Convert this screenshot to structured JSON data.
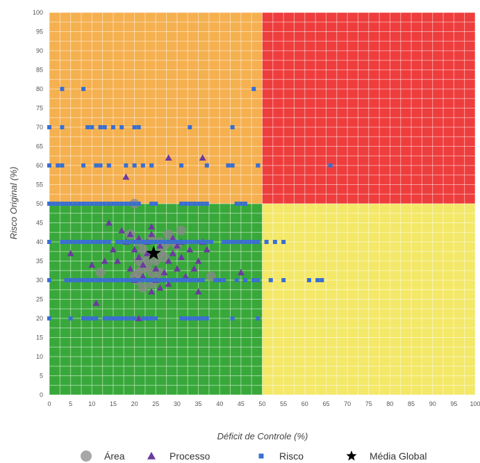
{
  "chart_data": {
    "type": "scatter",
    "title": "",
    "xlabel": "Déficit de Controle (%)",
    "ylabel": "Risco Original (%)",
    "xlim": [
      0,
      100
    ],
    "ylim": [
      0,
      100
    ],
    "x_ticks": [
      "0",
      "5",
      "10",
      "15",
      "20",
      "25",
      "30",
      "35",
      "40",
      "45",
      "50",
      "55",
      "60",
      "65",
      "70",
      "75",
      "80",
      "85",
      "90",
      "95",
      "100"
    ],
    "y_ticks": [
      "0",
      "5",
      "10",
      "15",
      "20",
      "25",
      "30",
      "35",
      "40",
      "45",
      "50",
      "55",
      "60",
      "65",
      "70",
      "75",
      "80",
      "85",
      "90",
      "95",
      "100"
    ],
    "grid": true,
    "legend_position": "bottom",
    "quadrants": [
      {
        "x": [
          0,
          50
        ],
        "y": [
          50,
          100
        ],
        "color": "#f5b04f"
      },
      {
        "x": [
          50,
          100
        ],
        "y": [
          50,
          100
        ],
        "color": "#ee3d3d"
      },
      {
        "x": [
          0,
          50
        ],
        "y": [
          0,
          50
        ],
        "color": "#38a83a"
      },
      {
        "x": [
          50,
          100
        ],
        "y": [
          0,
          50
        ],
        "color": "#f3e868"
      }
    ],
    "series": [
      {
        "name": "Área",
        "marker": "circle",
        "color": "#8a8a8a",
        "points": [
          [
            20,
            50
          ],
          [
            21,
            40
          ],
          [
            22,
            38
          ],
          [
            23,
            36
          ],
          [
            21,
            35
          ],
          [
            22,
            33
          ],
          [
            24,
            32
          ],
          [
            20,
            31
          ],
          [
            21,
            30
          ],
          [
            25,
            30
          ],
          [
            23,
            34
          ],
          [
            26,
            37
          ],
          [
            27,
            39
          ],
          [
            28,
            42
          ],
          [
            29,
            40
          ],
          [
            31,
            43
          ],
          [
            24,
            41
          ],
          [
            19,
            42
          ],
          [
            27,
            36
          ],
          [
            26,
            32
          ],
          [
            24,
            29
          ],
          [
            22,
            28
          ],
          [
            21,
            32
          ],
          [
            25,
            35
          ],
          [
            12,
            32
          ],
          [
            38,
            31
          ],
          [
            30,
            39
          ],
          [
            26,
            40
          ]
        ]
      },
      {
        "name": "Processo",
        "marker": "triangle",
        "color": "#6b3aa0",
        "points": [
          [
            28,
            62
          ],
          [
            36,
            62
          ],
          [
            18,
            57
          ],
          [
            5,
            37
          ],
          [
            10,
            34
          ],
          [
            14,
            45
          ],
          [
            15,
            38
          ],
          [
            16,
            35
          ],
          [
            17,
            43
          ],
          [
            18,
            40
          ],
          [
            19,
            42
          ],
          [
            19,
            33
          ],
          [
            20,
            38
          ],
          [
            20,
            30
          ],
          [
            21,
            41
          ],
          [
            21,
            36
          ],
          [
            22,
            34
          ],
          [
            22,
            31
          ],
          [
            23,
            37
          ],
          [
            23,
            40
          ],
          [
            24,
            44
          ],
          [
            24,
            42
          ],
          [
            24,
            27
          ],
          [
            25,
            30
          ],
          [
            25,
            33
          ],
          [
            26,
            28
          ],
          [
            26,
            39
          ],
          [
            27,
            32
          ],
          [
            28,
            35
          ],
          [
            28,
            29
          ],
          [
            29,
            41
          ],
          [
            29,
            37
          ],
          [
            30,
            33
          ],
          [
            30,
            39
          ],
          [
            31,
            40
          ],
          [
            31,
            36
          ],
          [
            32,
            31
          ],
          [
            33,
            38
          ],
          [
            34,
            33
          ],
          [
            35,
            35
          ],
          [
            35,
            27
          ],
          [
            36,
            40
          ],
          [
            37,
            38
          ],
          [
            45,
            32
          ],
          [
            11,
            24
          ],
          [
            21,
            20
          ],
          [
            13,
            35
          ]
        ]
      },
      {
        "name": "Risco",
        "marker": "square",
        "color": "#3a6fd0",
        "points": [
          [
            3,
            80
          ],
          [
            8,
            80
          ],
          [
            48,
            80
          ],
          [
            0,
            70
          ],
          [
            3,
            70
          ],
          [
            9,
            70
          ],
          [
            10,
            70
          ],
          [
            12,
            70
          ],
          [
            13,
            70
          ],
          [
            15,
            70
          ],
          [
            17,
            70
          ],
          [
            20,
            70
          ],
          [
            21,
            70
          ],
          [
            33,
            70
          ],
          [
            43,
            70
          ],
          [
            0,
            60
          ],
          [
            2,
            60
          ],
          [
            3,
            60
          ],
          [
            8,
            60
          ],
          [
            11,
            60
          ],
          [
            12,
            60
          ],
          [
            14,
            60
          ],
          [
            18,
            60
          ],
          [
            20,
            60
          ],
          [
            22,
            60
          ],
          [
            24,
            60
          ],
          [
            31,
            60
          ],
          [
            37,
            60
          ],
          [
            42,
            60
          ],
          [
            43,
            60
          ],
          [
            49,
            60
          ],
          [
            66,
            60
          ],
          [
            0,
            50
          ],
          [
            1,
            50
          ],
          [
            2,
            50
          ],
          [
            3,
            50
          ],
          [
            4,
            50
          ],
          [
            5,
            50
          ],
          [
            6,
            50
          ],
          [
            7,
            50
          ],
          [
            8,
            50
          ],
          [
            9,
            50
          ],
          [
            10,
            50
          ],
          [
            11,
            50
          ],
          [
            12,
            50
          ],
          [
            13,
            50
          ],
          [
            14,
            50
          ],
          [
            15,
            50
          ],
          [
            16,
            50
          ],
          [
            17,
            50
          ],
          [
            18,
            50
          ],
          [
            19,
            50
          ],
          [
            20,
            50
          ],
          [
            21,
            50
          ],
          [
            24,
            50
          ],
          [
            25,
            50
          ],
          [
            31,
            50
          ],
          [
            32,
            50
          ],
          [
            33,
            50
          ],
          [
            34,
            50
          ],
          [
            35,
            50
          ],
          [
            36,
            50
          ],
          [
            37,
            50
          ],
          [
            44,
            50
          ],
          [
            45,
            50
          ],
          [
            46,
            50
          ],
          [
            0,
            40
          ],
          [
            3,
            40
          ],
          [
            4,
            40
          ],
          [
            5,
            40
          ],
          [
            6,
            40
          ],
          [
            7,
            40
          ],
          [
            8,
            40
          ],
          [
            9,
            40
          ],
          [
            10,
            40
          ],
          [
            11,
            40
          ],
          [
            12,
            40
          ],
          [
            13,
            40
          ],
          [
            14,
            40
          ],
          [
            16,
            40
          ],
          [
            17,
            40
          ],
          [
            18,
            40
          ],
          [
            19,
            40
          ],
          [
            20,
            40
          ],
          [
            21,
            40
          ],
          [
            22,
            40
          ],
          [
            23,
            40
          ],
          [
            24,
            40
          ],
          [
            25,
            40
          ],
          [
            26,
            40
          ],
          [
            27,
            40
          ],
          [
            28,
            40
          ],
          [
            29,
            40
          ],
          [
            30,
            40
          ],
          [
            31,
            40
          ],
          [
            32,
            40
          ],
          [
            33,
            40
          ],
          [
            34,
            40
          ],
          [
            35,
            40
          ],
          [
            36,
            40
          ],
          [
            37,
            40
          ],
          [
            38,
            40
          ],
          [
            41,
            40
          ],
          [
            42,
            40
          ],
          [
            43,
            40
          ],
          [
            44,
            40
          ],
          [
            45,
            40
          ],
          [
            46,
            40
          ],
          [
            47,
            40
          ],
          [
            48,
            40
          ],
          [
            49,
            40
          ],
          [
            51,
            40
          ],
          [
            53,
            40
          ],
          [
            55,
            40
          ],
          [
            0,
            30
          ],
          [
            4,
            30
          ],
          [
            5,
            30
          ],
          [
            6,
            30
          ],
          [
            7,
            30
          ],
          [
            8,
            30
          ],
          [
            9,
            30
          ],
          [
            10,
            30
          ],
          [
            11,
            30
          ],
          [
            12,
            30
          ],
          [
            13,
            30
          ],
          [
            14,
            30
          ],
          [
            15,
            30
          ],
          [
            16,
            30
          ],
          [
            17,
            30
          ],
          [
            18,
            30
          ],
          [
            19,
            30
          ],
          [
            20,
            30
          ],
          [
            21,
            30
          ],
          [
            22,
            30
          ],
          [
            23,
            30
          ],
          [
            24,
            30
          ],
          [
            25,
            30
          ],
          [
            26,
            30
          ],
          [
            27,
            30
          ],
          [
            28,
            30
          ],
          [
            29,
            30
          ],
          [
            30,
            30
          ],
          [
            31,
            30
          ],
          [
            32,
            30
          ],
          [
            33,
            30
          ],
          [
            34,
            30
          ],
          [
            35,
            30
          ],
          [
            36,
            30
          ],
          [
            39,
            30
          ],
          [
            40,
            30
          ],
          [
            41,
            30
          ],
          [
            44,
            30
          ],
          [
            46,
            30
          ],
          [
            48,
            30
          ],
          [
            49,
            30
          ],
          [
            52,
            30
          ],
          [
            55,
            30
          ],
          [
            61,
            30
          ],
          [
            63,
            30
          ],
          [
            64,
            30
          ],
          [
            0,
            20
          ],
          [
            5,
            20
          ],
          [
            8,
            20
          ],
          [
            9,
            20
          ],
          [
            10,
            20
          ],
          [
            11,
            20
          ],
          [
            13,
            20
          ],
          [
            14,
            20
          ],
          [
            15,
            20
          ],
          [
            16,
            20
          ],
          [
            17,
            20
          ],
          [
            18,
            20
          ],
          [
            19,
            20
          ],
          [
            20,
            20
          ],
          [
            22,
            20
          ],
          [
            23,
            20
          ],
          [
            24,
            20
          ],
          [
            25,
            20
          ],
          [
            31,
            20
          ],
          [
            32,
            20
          ],
          [
            33,
            20
          ],
          [
            34,
            20
          ],
          [
            35,
            20
          ],
          [
            36,
            20
          ],
          [
            37,
            20
          ],
          [
            43,
            20
          ],
          [
            49,
            20
          ]
        ]
      },
      {
        "name": "Média Global",
        "marker": "star",
        "color": "#000000",
        "points": [
          [
            24.5,
            37
          ]
        ]
      }
    ]
  }
}
